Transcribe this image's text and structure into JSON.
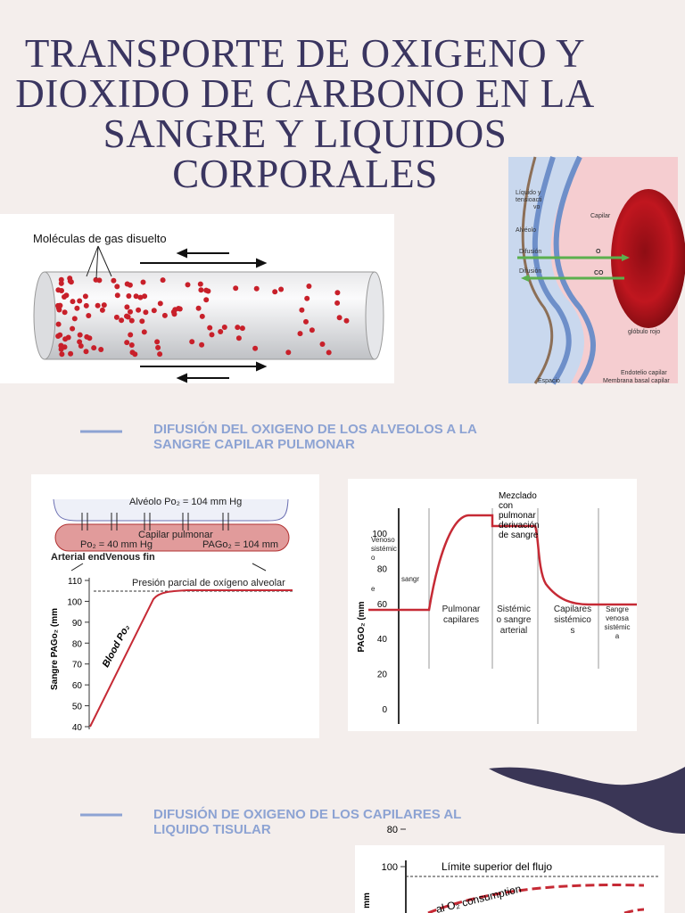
{
  "title": [
    "TRANSPORTE DE OXIGENO Y",
    "DIOXIDO DE CARBONO EN LA",
    "SANGRE Y LIQUIDOS",
    "CORPORALES"
  ],
  "figure_tube": {
    "label": "Moléculas de gas disuelto"
  },
  "figure_membrane": {
    "labels": [
      "Líquido y",
      "tensioacti",
      "vo",
      "Alvéolo",
      "Difusión",
      "O",
      "Difusión",
      "CO",
      "Capilar",
      "glóbulo rojo",
      "Endotelio capilar",
      "Membrana basal capilar",
      "Espacio"
    ]
  },
  "section_1": {
    "heading": [
      "DIFUSIÓN DEL OXIGENO DE LOS ALVEOLOS A LA",
      "SANGRE CAPILAR PULMONAR"
    ]
  },
  "figure_alveolar": {
    "alveolus": "Alvéolo Po₂ = 104 mm Hg",
    "capillary": "Capilar pulmonar",
    "start_po2": "Po₂ = 40 mm Hg",
    "end_po2": "PAGo₂ = 104 mm",
    "ends": "Arterial endVenous fin",
    "reference": "Presión parcial de oxígeno alveolar",
    "y_label": "Sangre PAGo₂ (mm",
    "curve_label": "Blood Po₂",
    "yticks": [
      110,
      100,
      90,
      80,
      70,
      60,
      50,
      40
    ]
  },
  "figure_path": {
    "mixing": [
      "Mezclado",
      "con",
      "pulmonar",
      "derivación",
      "de sangre"
    ],
    "stages": [
      [
        "Venoso",
        "sistémic",
        "o",
        "e",
        "sangr"
      ],
      [
        "Pulmonar",
        "capilares"
      ],
      [
        "Sistémic",
        "o sangre",
        "arterial"
      ],
      [
        "Capilares",
        "sistémico",
        "s"
      ],
      [
        "Sangre",
        "venosa",
        "sistémic",
        "a"
      ]
    ],
    "y_label": "PAGO₂ (mm",
    "yticks": [
      100,
      80,
      60,
      40,
      20,
      0
    ]
  },
  "section_2": {
    "heading": [
      "DIFUSIÓN DE OXIGENO DE LOS CAPILARES AL",
      "LIQUIDO TISULAR"
    ]
  },
  "figure_tissue": {
    "limit": "Límite superior del flujo",
    "y_label": "mm",
    "curve_label": "al O₂ consumption",
    "yticks": [
      100,
      80
    ]
  }
}
